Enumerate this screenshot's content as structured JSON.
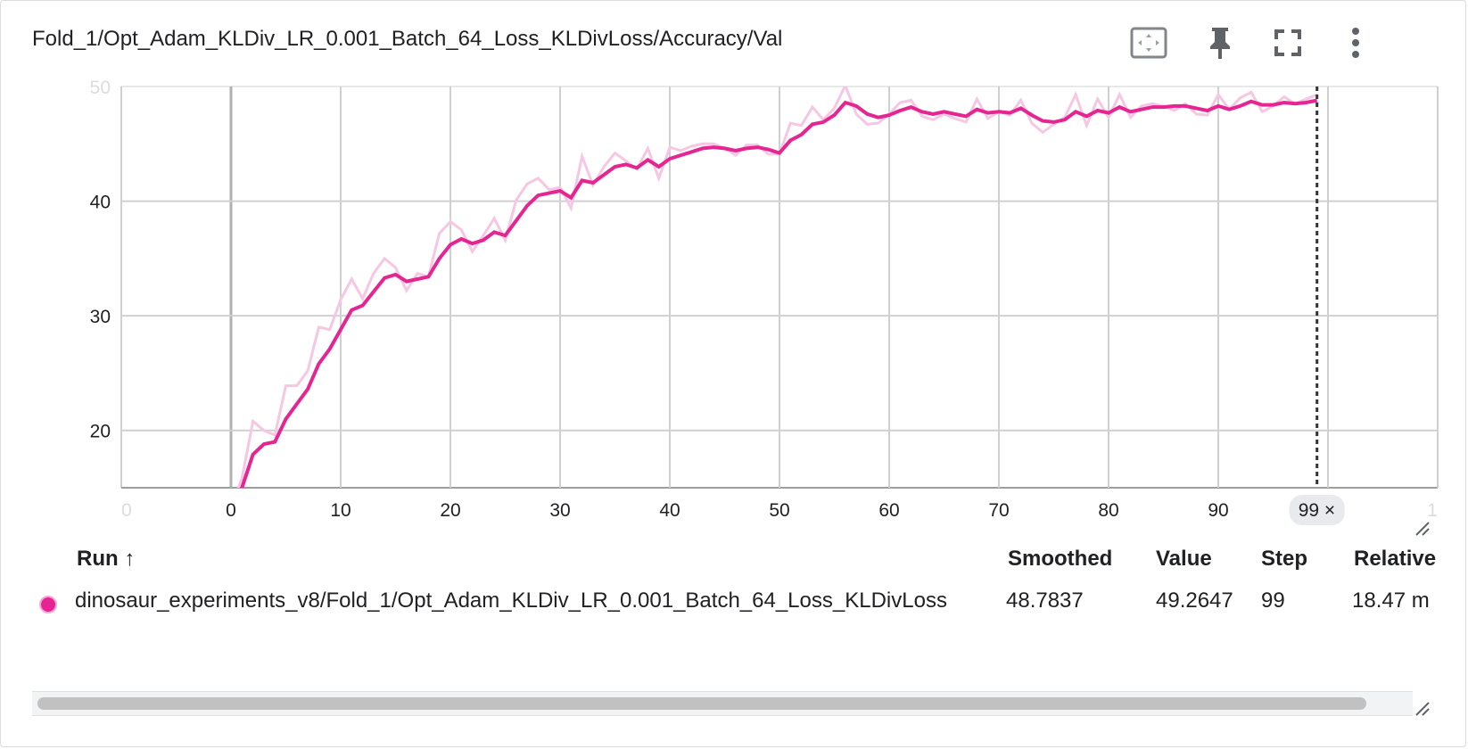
{
  "card": {
    "title": "Fold_1/Opt_Adam_KLDiv_LR_0.001_Batch_64_Loss_KLDivLoss/Accuracy/Val",
    "tools": [
      "fit-domain-icon",
      "pin-icon",
      "fullscreen-icon",
      "more-vert-icon"
    ]
  },
  "colors": {
    "smoothed": "#e52592",
    "raw": "#f7c6e2",
    "grid": "#d0d0d0",
    "cursor": "#333333"
  },
  "chart_data": {
    "type": "line",
    "xlim": [
      -10,
      110
    ],
    "ylim": [
      15,
      50
    ],
    "x_ticks": [
      0,
      10,
      20,
      30,
      40,
      50,
      60,
      70,
      80,
      90
    ],
    "y_ticks": [
      20,
      30,
      40
    ],
    "edge_tick_labels": {
      "x_left": "0",
      "x_right": "1",
      "y_top": "50"
    },
    "grid": true,
    "cursor_step": 99,
    "cursor_label": "99 ×",
    "series": [
      {
        "name": "raw",
        "x": [
          0,
          1,
          2,
          3,
          4,
          5,
          6,
          7,
          8,
          9,
          10,
          11,
          12,
          13,
          14,
          15,
          16,
          17,
          18,
          19,
          20,
          21,
          22,
          23,
          24,
          25,
          26,
          27,
          28,
          29,
          30,
          31,
          32,
          33,
          34,
          35,
          36,
          37,
          38,
          39,
          40,
          41,
          42,
          43,
          44,
          45,
          46,
          47,
          48,
          49,
          50,
          51,
          52,
          53,
          54,
          55,
          56,
          57,
          58,
          59,
          60,
          61,
          62,
          63,
          64,
          65,
          66,
          67,
          68,
          69,
          70,
          71,
          72,
          73,
          74,
          75,
          76,
          77,
          78,
          79,
          80,
          81,
          82,
          83,
          84,
          85,
          86,
          87,
          88,
          89,
          90,
          91,
          92,
          93,
          94,
          95,
          96,
          97,
          98,
          99
        ],
        "values": [
          13.5,
          15.8,
          20.8,
          20.0,
          19.6,
          23.9,
          23.9,
          25.2,
          29.0,
          28.8,
          31.4,
          33.2,
          31.5,
          33.7,
          35.0,
          34.2,
          32.2,
          33.7,
          33.4,
          37.2,
          38.2,
          37.5,
          35.6,
          37.0,
          38.5,
          36.6,
          40.1,
          41.5,
          42.0,
          41.0,
          41.2,
          39.4,
          43.9,
          41.4,
          43.0,
          44.2,
          43.5,
          42.8,
          44.6,
          42.0,
          44.7,
          44.4,
          44.8,
          45.0,
          45.0,
          44.6,
          44.0,
          44.9,
          44.9,
          44.1,
          44.1,
          46.8,
          46.6,
          48.2,
          47.1,
          48.1,
          50.1,
          47.6,
          46.7,
          46.8,
          47.6,
          48.6,
          48.8,
          47.4,
          47.1,
          47.6,
          47.2,
          46.9,
          48.9,
          47.2,
          47.8,
          47.5,
          48.8,
          46.8,
          46.0,
          46.7,
          47.3,
          49.3,
          46.6,
          48.9,
          47.3,
          49.3,
          47.3,
          48.3,
          48.5,
          48.3,
          47.9,
          48.5,
          47.6,
          47.5,
          49.3,
          48.0,
          49.0,
          49.5,
          47.8,
          48.3,
          49.1,
          48.5,
          48.9,
          49.3
        ]
      },
      {
        "name": "smoothed",
        "x": [
          0,
          1,
          2,
          3,
          4,
          5,
          6,
          7,
          8,
          9,
          10,
          11,
          12,
          13,
          14,
          15,
          16,
          17,
          18,
          19,
          20,
          21,
          22,
          23,
          24,
          25,
          26,
          27,
          28,
          29,
          30,
          31,
          32,
          33,
          34,
          35,
          36,
          37,
          38,
          39,
          40,
          41,
          42,
          43,
          44,
          45,
          46,
          47,
          48,
          49,
          50,
          51,
          52,
          53,
          54,
          55,
          56,
          57,
          58,
          59,
          60,
          61,
          62,
          63,
          64,
          65,
          66,
          67,
          68,
          69,
          70,
          71,
          72,
          73,
          74,
          75,
          76,
          77,
          78,
          79,
          80,
          81,
          82,
          83,
          84,
          85,
          86,
          87,
          88,
          89,
          90,
          91,
          92,
          93,
          94,
          95,
          96,
          97,
          98,
          99
        ],
        "values": [
          13.5,
          15.0,
          17.9,
          18.8,
          19.0,
          21.0,
          22.3,
          23.6,
          25.8,
          27.1,
          28.8,
          30.5,
          30.9,
          32.1,
          33.3,
          33.6,
          33.0,
          33.2,
          33.4,
          35.0,
          36.2,
          36.7,
          36.3,
          36.6,
          37.3,
          37.0,
          38.3,
          39.6,
          40.5,
          40.7,
          40.9,
          40.3,
          41.8,
          41.6,
          42.3,
          43.0,
          43.2,
          42.9,
          43.6,
          43.0,
          43.7,
          44.0,
          44.3,
          44.6,
          44.7,
          44.6,
          44.4,
          44.6,
          44.7,
          44.5,
          44.2,
          45.3,
          45.8,
          46.7,
          46.9,
          47.5,
          48.6,
          48.3,
          47.6,
          47.3,
          47.5,
          47.9,
          48.2,
          47.8,
          47.6,
          47.8,
          47.6,
          47.4,
          48.0,
          47.7,
          47.8,
          47.7,
          48.1,
          47.5,
          47.0,
          46.9,
          47.1,
          47.8,
          47.4,
          47.9,
          47.7,
          48.2,
          47.8,
          48.0,
          48.2,
          48.2,
          48.3,
          48.3,
          48.1,
          47.9,
          48.3,
          48.0,
          48.3,
          48.7,
          48.4,
          48.4,
          48.6,
          48.5,
          48.6,
          48.7837
        ]
      }
    ]
  },
  "table": {
    "headers": {
      "run": "Run ↑",
      "smoothed": "Smoothed",
      "value": "Value",
      "step": "Step",
      "relative": "Relative"
    },
    "rows": [
      {
        "run": "dinosaur_experiments_v8/Fold_1/Opt_Adam_KLDiv_LR_0.001_Batch_64_Loss_KLDivLoss",
        "smoothed": "48.7837",
        "value": "49.2647",
        "step": "99",
        "relative": "18.47 m"
      }
    ]
  }
}
